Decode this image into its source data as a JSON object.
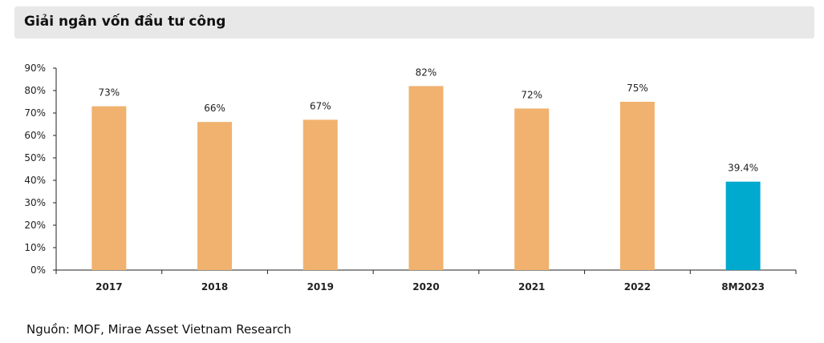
{
  "header": {
    "title": "Giải ngân vốn đầu tư công"
  },
  "footer": {
    "source": "Nguồn: MOF, Mirae Asset Vietnam Research"
  },
  "colors": {
    "bar_default": "#f0b26e",
    "bar_highlight": "#00a9ce",
    "axis": "#222222"
  },
  "chart_data": {
    "type": "bar",
    "categories": [
      "2017",
      "2018",
      "2019",
      "2020",
      "2021",
      "2022",
      "8M2023"
    ],
    "values": [
      73,
      66,
      67,
      82,
      72,
      75,
      39.4
    ],
    "data_labels": [
      "73%",
      "66%",
      "67%",
      "82%",
      "72%",
      "75%",
      "39.4%"
    ],
    "highlight_index": 6,
    "ylim": [
      0,
      90
    ],
    "yticks": [
      0,
      10,
      20,
      30,
      40,
      50,
      60,
      70,
      80,
      90
    ],
    "ytick_labels": [
      "0%",
      "10%",
      "20%",
      "30%",
      "40%",
      "50%",
      "60%",
      "70%",
      "80%",
      "90%"
    ],
    "grid": false,
    "legend": "none",
    "xlabel": "",
    "ylabel": ""
  }
}
